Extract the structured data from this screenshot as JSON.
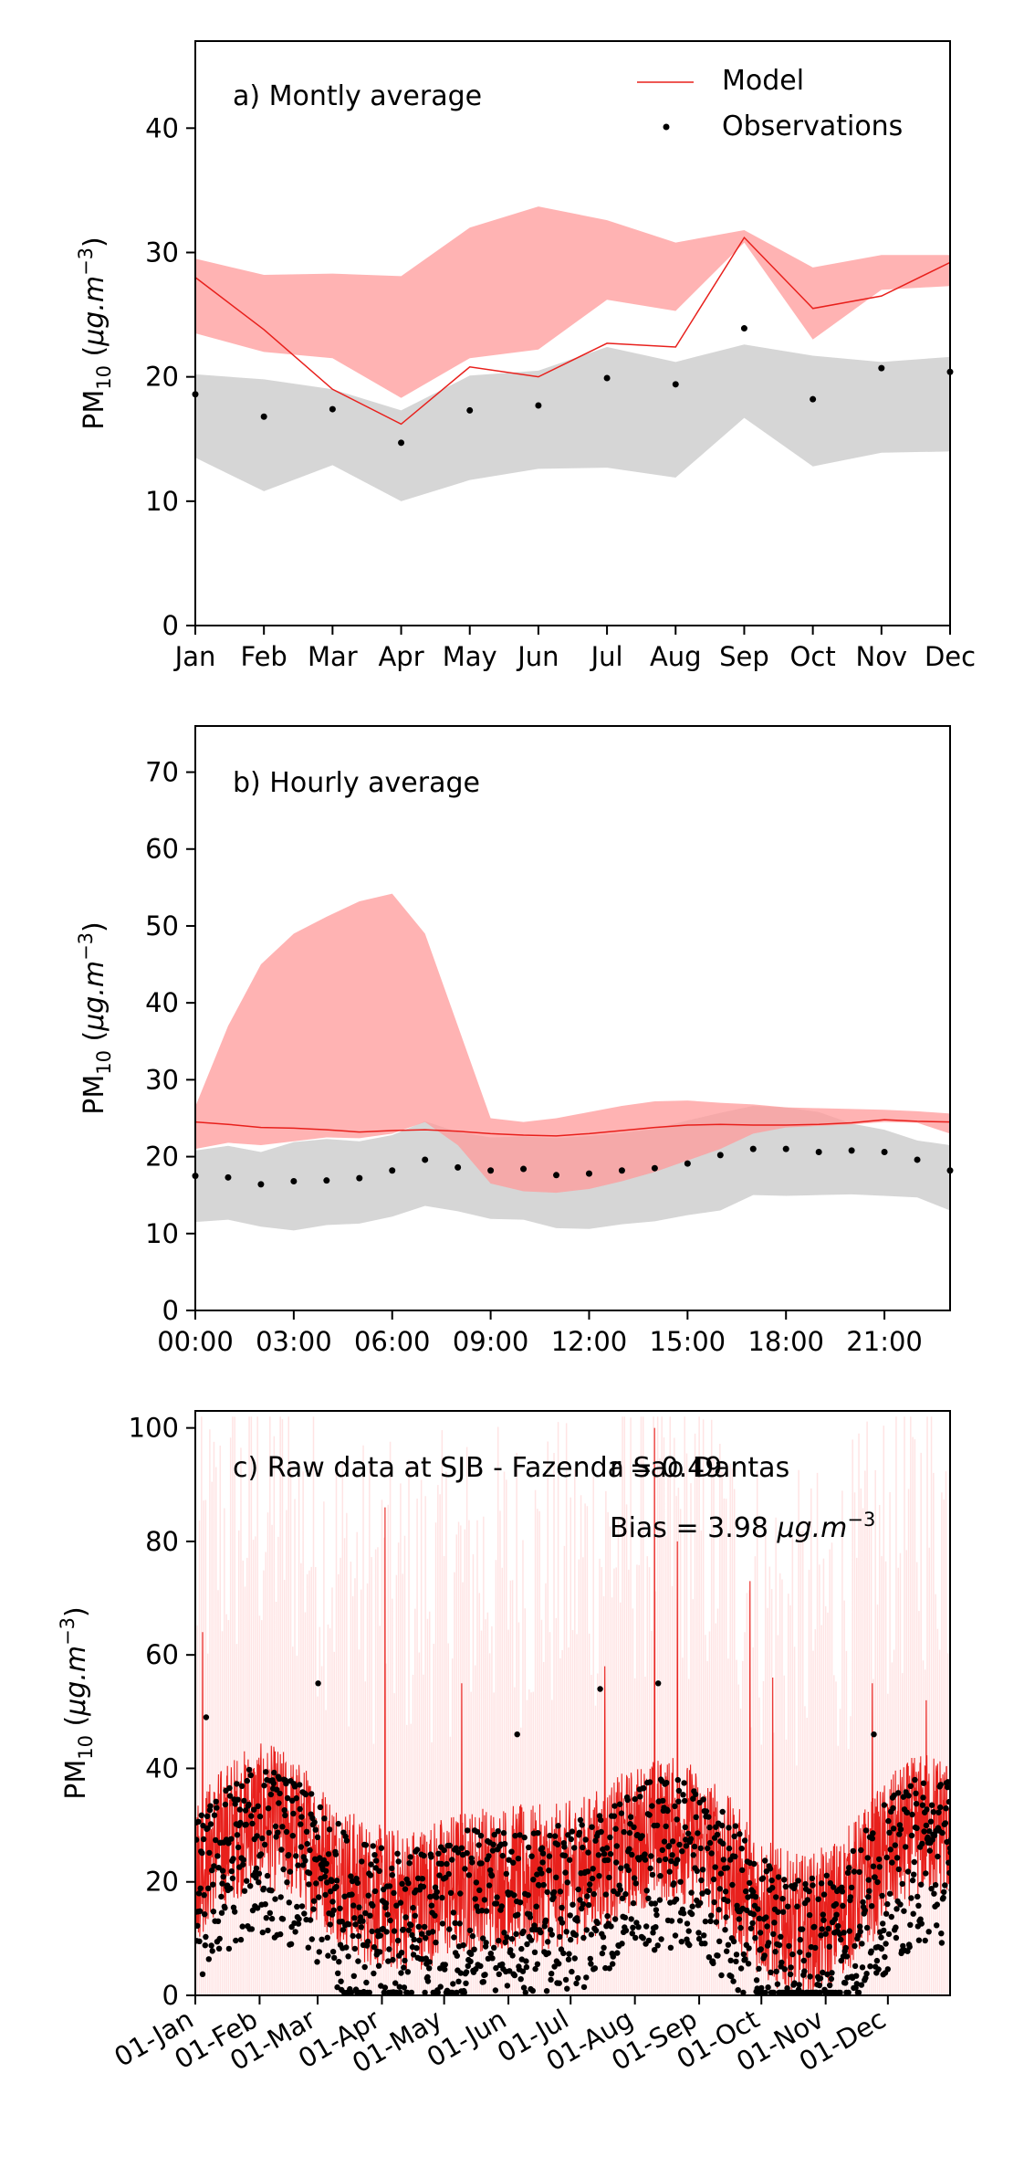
{
  "chart_data": [
    {
      "type": "line",
      "panel_label": "a) Montly average",
      "ylabel": "PM10 (μg.m−3)",
      "ylim": [
        0,
        47
      ],
      "yticks": [
        0,
        10,
        20,
        30,
        40
      ],
      "categories": [
        "Jan",
        "Feb",
        "Mar",
        "Apr",
        "May",
        "Jun",
        "Jul",
        "Aug",
        "Sep",
        "Oct",
        "Nov",
        "Dec"
      ],
      "legend": {
        "placement": "top-right",
        "entries": [
          "Model",
          "Observations"
        ]
      },
      "series": [
        {
          "name": "Model",
          "kind": "line",
          "color": "#e8201c",
          "values": [
            28.0,
            23.8,
            19.0,
            16.2,
            20.8,
            20.0,
            22.7,
            22.4,
            31.2,
            25.5,
            26.5,
            29.2
          ]
        },
        {
          "name": "Observations",
          "kind": "points",
          "color": "#000000",
          "values": [
            18.6,
            16.8,
            17.4,
            14.7,
            17.3,
            17.7,
            19.9,
            19.4,
            23.9,
            18.2,
            20.7,
            20.4
          ]
        }
      ],
      "model_band": {
        "color": "#ff9999",
        "low": [
          23.5,
          22.0,
          21.5,
          18.3,
          21.5,
          22.2,
          26.2,
          25.3,
          30.8,
          23.0,
          27.0,
          27.3
        ],
        "high": [
          29.5,
          28.2,
          28.3,
          28.1,
          32.0,
          33.7,
          32.6,
          30.8,
          31.8,
          28.8,
          29.8,
          29.8
        ]
      },
      "obs_band": {
        "color": "#c8c8c8",
        "low": [
          13.5,
          10.8,
          12.9,
          10.0,
          11.7,
          12.6,
          12.7,
          11.9,
          16.7,
          12.8,
          13.9,
          14.0
        ],
        "high": [
          20.2,
          19.8,
          19.0,
          17.3,
          20.1,
          20.5,
          22.4,
          21.2,
          22.6,
          21.7,
          21.2,
          21.6
        ]
      }
    },
    {
      "type": "line",
      "panel_label": "b) Hourly average",
      "ylabel": "PM10 (μg.m−3)",
      "ylim": [
        0,
        76
      ],
      "yticks": [
        0,
        10,
        20,
        30,
        40,
        50,
        60,
        70
      ],
      "xlim": [
        0,
        23
      ],
      "xticks": [
        0,
        3,
        6,
        9,
        12,
        15,
        18,
        21
      ],
      "xtick_labels": [
        "00:00",
        "03:00",
        "06:00",
        "09:00",
        "12:00",
        "15:00",
        "18:00",
        "21:00"
      ],
      "hours": [
        0,
        1,
        2,
        3,
        4,
        5,
        6,
        7,
        8,
        9,
        10,
        11,
        12,
        13,
        14,
        15,
        16,
        17,
        18,
        19,
        20,
        21,
        22,
        23
      ],
      "series": [
        {
          "name": "Model",
          "kind": "line",
          "color": "#e8201c",
          "values": [
            24.5,
            24.2,
            23.8,
            23.7,
            23.5,
            23.2,
            23.4,
            23.5,
            23.3,
            23.0,
            22.8,
            22.7,
            23.0,
            23.4,
            23.8,
            24.1,
            24.2,
            24.1,
            24.1,
            24.2,
            24.4,
            24.8,
            24.6,
            24.5
          ]
        },
        {
          "name": "Observations",
          "kind": "points",
          "color": "#000000",
          "values": [
            17.5,
            17.3,
            16.4,
            16.8,
            16.9,
            17.2,
            18.2,
            19.6,
            18.6,
            18.2,
            18.4,
            17.6,
            17.8,
            18.2,
            18.5,
            19.1,
            20.2,
            21.0,
            21.0,
            20.6,
            20.8,
            20.6,
            19.6,
            18.2
          ]
        }
      ],
      "model_band": {
        "color": "#ff9999",
        "low": [
          21.0,
          21.8,
          21.5,
          22.0,
          22.5,
          22.4,
          23.0,
          24.5,
          21.5,
          16.5,
          15.5,
          15.3,
          15.8,
          16.8,
          18.0,
          19.5,
          21.0,
          23.0,
          23.8,
          24.0,
          24.2,
          24.5,
          24.4,
          23.0
        ],
        "high": [
          26.5,
          37.0,
          45.0,
          49.0,
          51.2,
          53.2,
          54.2,
          49.0,
          37.0,
          25.0,
          24.5,
          25.0,
          25.8,
          26.6,
          27.2,
          27.3,
          27.0,
          26.8,
          26.4,
          26.3,
          26.2,
          26.1,
          25.9,
          25.6
        ]
      },
      "obs_band": {
        "color": "#c8c8c8",
        "low": [
          11.5,
          11.8,
          10.9,
          10.4,
          11.1,
          11.3,
          12.2,
          13.6,
          12.9,
          11.9,
          11.8,
          10.7,
          10.6,
          11.2,
          11.6,
          12.4,
          13.0,
          15.0,
          14.9,
          15.0,
          15.1,
          14.9,
          14.7,
          13.0
        ],
        "high": [
          20.8,
          21.4,
          20.6,
          21.9,
          22.3,
          22.0,
          22.8,
          24.6,
          23.2,
          22.5,
          22.6,
          22.4,
          22.7,
          23.1,
          23.6,
          24.7,
          25.7,
          26.6,
          26.4,
          25.8,
          24.3,
          23.5,
          22.1,
          21.5
        ]
      }
    },
    {
      "type": "line",
      "panel_label": "c) Raw data at SJB - Fazenda Sao Dantas",
      "stat_r": "r = 0.49",
      "stat_bias": "Bias = 3.98 μg.m−3",
      "ylabel": "PM10 (μg.m−3)",
      "ylim": [
        0,
        103
      ],
      "yticks": [
        0,
        20,
        40,
        60,
        80,
        100
      ],
      "xtick_labels": [
        "01-Jan",
        "01-Feb",
        "01-Mar",
        "01-Apr",
        "01-May",
        "01-Jun",
        "01-Jul",
        "01-Aug",
        "01-Sep",
        "01-Oct",
        "01-Nov",
        "01-Dec"
      ],
      "model_daily_peaks": [
        {
          "date": "05-Jan",
          "value": 64
        },
        {
          "date": "03-Apr",
          "value": 86
        },
        {
          "date": "10-May",
          "value": 55
        },
        {
          "date": "18-Jul",
          "value": 58
        },
        {
          "date": "11-Aug",
          "value": 100
        },
        {
          "date": "22-Aug",
          "value": 80
        },
        {
          "date": "26-Sep",
          "value": 73
        },
        {
          "date": "07-Oct",
          "value": 56
        },
        {
          "date": "24-Nov",
          "value": 55
        },
        {
          "date": "20-Dec",
          "value": 52
        }
      ],
      "observation_peaks": [
        {
          "date": "06-Jan",
          "value": 49
        },
        {
          "date": "01-Mar",
          "value": 55
        },
        {
          "date": "05-Jun",
          "value": 46
        },
        {
          "date": "15-Jul",
          "value": 54
        },
        {
          "date": "12-Aug",
          "value": 55
        },
        {
          "date": "24-Nov",
          "value": 46
        }
      ],
      "series": [
        {
          "name": "Model",
          "kind": "line",
          "color": "#e8201c"
        },
        {
          "name": "Observations",
          "kind": "points",
          "color": "#000000"
        }
      ]
    }
  ]
}
